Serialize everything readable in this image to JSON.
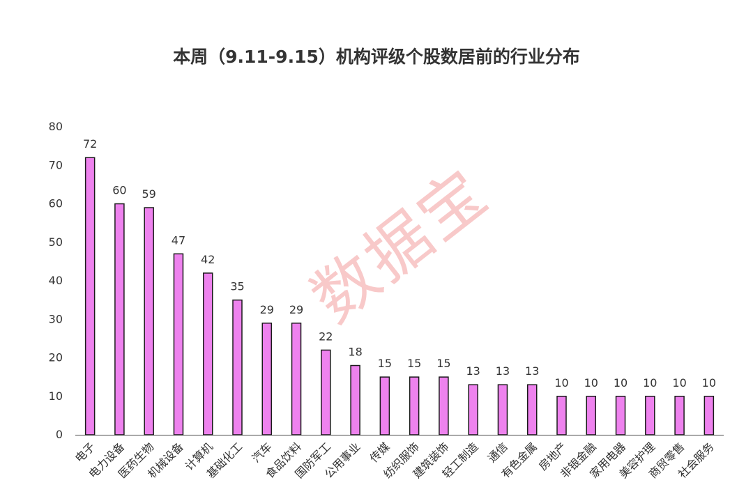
{
  "watermark": "数据宝",
  "chart_data": {
    "type": "bar",
    "title": "本周（9.11-9.15）机构评级个股数居前的行业分布",
    "categories": [
      "电子",
      "电力设备",
      "医药生物",
      "机械设备",
      "计算机",
      "基础化工",
      "汽车",
      "食品饮料",
      "国防军工",
      "公用事业",
      "传媒",
      "纺织服饰",
      "建筑装饰",
      "轻工制造",
      "通信",
      "有色金属",
      "房地产",
      "非银金融",
      "家用电器",
      "美容护理",
      "商贸零售",
      "社会服务"
    ],
    "values": [
      72,
      60,
      59,
      47,
      42,
      35,
      29,
      29,
      22,
      18,
      15,
      15,
      15,
      13,
      13,
      13,
      10,
      10,
      10,
      10,
      10,
      10
    ],
    "ylim": [
      0,
      80
    ],
    "yticks": [
      0,
      10,
      20,
      30,
      40,
      50,
      60,
      70,
      80
    ],
    "grid": false,
    "legend": "none",
    "colors": {
      "bar_fill": "#ee82ee",
      "bar_stroke": "#1a1a1a",
      "text": "#333333"
    }
  }
}
